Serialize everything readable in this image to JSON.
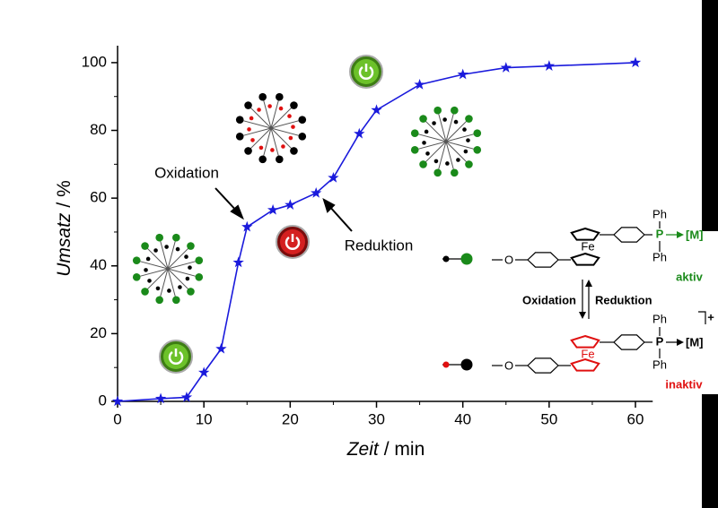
{
  "chart_data": {
    "type": "line",
    "x": [
      0,
      5,
      8,
      10,
      12,
      14,
      15,
      18,
      20,
      23,
      25,
      28,
      30,
      35,
      40,
      45,
      50,
      60
    ],
    "series": [
      {
        "color": "#1a1adc",
        "values": [
          0,
          0.8,
          1.2,
          8.5,
          15.5,
          41,
          51.5,
          56.5,
          58,
          61.5,
          66,
          79,
          86,
          93.5,
          96.5,
          98.5,
          99,
          100
        ]
      }
    ],
    "xlim": [
      0,
      62
    ],
    "ylim": [
      0,
      105
    ],
    "xticks": [
      0,
      10,
      20,
      30,
      40,
      50,
      60
    ],
    "yticks": [
      0,
      20,
      40,
      60,
      80,
      100
    ],
    "xlabel": [
      "Zeit",
      "/ min"
    ],
    "ylabel": [
      "Umsatz",
      "/ %"
    ],
    "annotations": [
      "Oxidation",
      "Reduktion"
    ],
    "scheme": {
      "ph": "Ph",
      "p": "P",
      "metal": "[M]",
      "fe": "Fe",
      "oxygen": "O",
      "active": "aktiv",
      "inactive": "inaktiv",
      "oxidation": "Oxidation",
      "reduction": "Reduktion",
      "charge": "+"
    }
  }
}
